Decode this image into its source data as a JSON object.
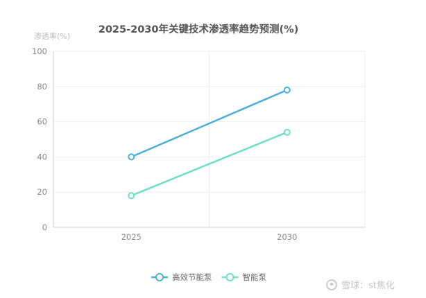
{
  "chart_data": {
    "type": "line",
    "title": "2025-2030年关键技术渗透率趋势预测(%)",
    "xlabel": "",
    "ylabel": "渗透率(%)",
    "categories": [
      "2025",
      "2030"
    ],
    "ylim": [
      0,
      100
    ],
    "yticks": [
      0,
      20,
      40,
      60,
      80,
      100
    ],
    "grid": true,
    "legend_position": "bottom-center",
    "series": [
      {
        "name": "高效节能泵",
        "values": [
          40,
          78
        ],
        "color": "#4aaed9"
      },
      {
        "name": "智能泵",
        "values": [
          18,
          54
        ],
        "color": "#6de0c0"
      }
    ]
  },
  "watermark": {
    "text": "雪球：st焦化"
  }
}
